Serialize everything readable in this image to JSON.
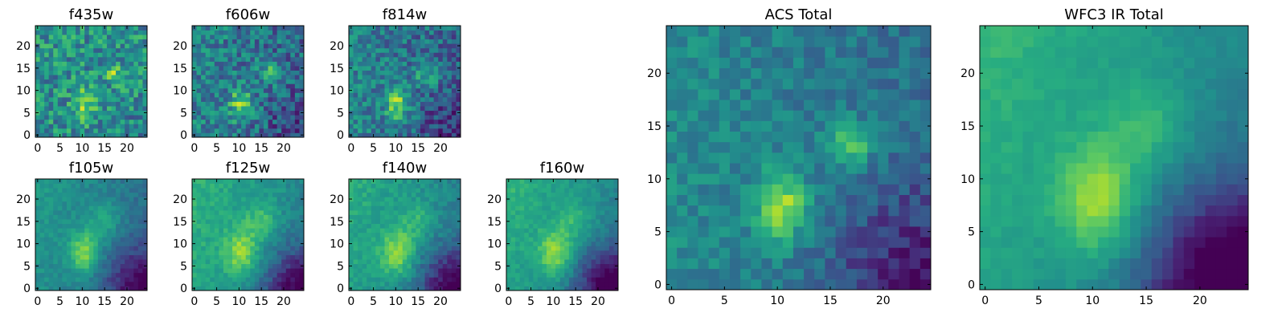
{
  "chart_data": [
    {
      "type": "heatmap",
      "title": "f435w",
      "grid_size": 25,
      "xticks": [
        0,
        5,
        10,
        15,
        20
      ],
      "yticks": [
        0,
        5,
        10,
        15,
        20
      ],
      "xlim": [
        -0.5,
        24.5
      ],
      "ylim": [
        -0.5,
        24.5
      ],
      "colormap": "viridis",
      "blobs": [
        {
          "x": 10.5,
          "y": 7,
          "sx": 1.6,
          "sy": 2.2,
          "amp": 0.35
        },
        {
          "x": 17,
          "y": 14,
          "sx": 1.6,
          "sy": 1.4,
          "amp": 0.28
        }
      ],
      "base": 0.5,
      "noise": 0.22,
      "seed": 11,
      "gradient_x": 0,
      "gradient_y": 0,
      "corner_dark": 0.05
    },
    {
      "type": "heatmap",
      "title": "f606w",
      "grid_size": 25,
      "xticks": [
        0,
        5,
        10,
        15,
        20
      ],
      "yticks": [
        0,
        5,
        10,
        15,
        20
      ],
      "xlim": [
        -0.5,
        24.5
      ],
      "ylim": [
        -0.5,
        24.5
      ],
      "colormap": "viridis",
      "blobs": [
        {
          "x": 10.5,
          "y": 7,
          "sx": 1.8,
          "sy": 2.4,
          "amp": 0.38
        },
        {
          "x": 17,
          "y": 14,
          "sx": 1.8,
          "sy": 1.5,
          "amp": 0.3
        }
      ],
      "base": 0.45,
      "noise": 0.2,
      "seed": 23,
      "gradient_x": -0.1,
      "gradient_y": 0,
      "corner_dark": 0.15
    },
    {
      "type": "heatmap",
      "title": "f814w",
      "grid_size": 25,
      "xticks": [
        0,
        5,
        10,
        15,
        20
      ],
      "yticks": [
        0,
        5,
        10,
        15,
        20
      ],
      "xlim": [
        -0.5,
        24.5
      ],
      "ylim": [
        -0.5,
        24.5
      ],
      "colormap": "viridis",
      "blobs": [
        {
          "x": 10.5,
          "y": 7,
          "sx": 1.8,
          "sy": 2.6,
          "amp": 0.42
        },
        {
          "x": 17,
          "y": 13,
          "sx": 1.8,
          "sy": 1.6,
          "amp": 0.26
        }
      ],
      "base": 0.45,
      "noise": 0.18,
      "seed": 37,
      "gradient_x": -0.12,
      "gradient_y": 0,
      "corner_dark": 0.2
    },
    {
      "type": "heatmap",
      "title": "f105w",
      "grid_size": 25,
      "xticks": [
        0,
        5,
        10,
        15,
        20
      ],
      "yticks": [
        0,
        5,
        10,
        15,
        20
      ],
      "xlim": [
        -0.5,
        24.5
      ],
      "ylim": [
        -0.5,
        24.5
      ],
      "colormap": "viridis",
      "blobs": [
        {
          "x": 10.5,
          "y": 8,
          "sx": 2.4,
          "sy": 3.4,
          "amp": 0.38
        },
        {
          "x": 15,
          "y": 15,
          "sx": 2.6,
          "sy": 3,
          "amp": 0.18
        }
      ],
      "base": 0.5,
      "noise": 0.06,
      "seed": 41,
      "gradient_x": -0.18,
      "gradient_y": 0.05,
      "corner_dark": 0.35
    },
    {
      "type": "heatmap",
      "title": "f125w",
      "grid_size": 25,
      "xticks": [
        0,
        5,
        10,
        15,
        20
      ],
      "yticks": [
        0,
        5,
        10,
        15,
        20
      ],
      "xlim": [
        -0.5,
        24.5
      ],
      "ylim": [
        -0.5,
        24.5
      ],
      "colormap": "viridis",
      "blobs": [
        {
          "x": 10.5,
          "y": 8,
          "sx": 2.6,
          "sy": 3.6,
          "amp": 0.32
        },
        {
          "x": 15,
          "y": 15,
          "sx": 2.6,
          "sy": 3,
          "amp": 0.18
        }
      ],
      "base": 0.6,
      "noise": 0.07,
      "seed": 53,
      "gradient_x": -0.18,
      "gradient_y": 0.05,
      "corner_dark": 0.45
    },
    {
      "type": "heatmap",
      "title": "f140w",
      "grid_size": 25,
      "xticks": [
        0,
        5,
        10,
        15,
        20
      ],
      "yticks": [
        0,
        5,
        10,
        15,
        20
      ],
      "xlim": [
        -0.5,
        24.5
      ],
      "ylim": [
        -0.5,
        24.5
      ],
      "colormap": "viridis",
      "blobs": [
        {
          "x": 10.5,
          "y": 8,
          "sx": 2.6,
          "sy": 3.6,
          "amp": 0.34
        },
        {
          "x": 15,
          "y": 15,
          "sx": 2.6,
          "sy": 3,
          "amp": 0.16
        }
      ],
      "base": 0.58,
      "noise": 0.07,
      "seed": 67,
      "gradient_x": -0.18,
      "gradient_y": 0.05,
      "corner_dark": 0.45
    },
    {
      "type": "heatmap",
      "title": "f160w",
      "grid_size": 25,
      "xticks": [
        0,
        5,
        10,
        15,
        20
      ],
      "yticks": [
        0,
        5,
        10,
        15,
        20
      ],
      "xlim": [
        -0.5,
        24.5
      ],
      "ylim": [
        -0.5,
        24.5
      ],
      "colormap": "viridis",
      "blobs": [
        {
          "x": 10.5,
          "y": 8,
          "sx": 2.6,
          "sy": 3.6,
          "amp": 0.34
        },
        {
          "x": 15,
          "y": 15,
          "sx": 2.6,
          "sy": 3,
          "amp": 0.16
        }
      ],
      "base": 0.58,
      "noise": 0.06,
      "seed": 79,
      "gradient_x": -0.2,
      "gradient_y": 0.08,
      "corner_dark": 0.5
    },
    {
      "type": "heatmap",
      "title": "ACS Total",
      "grid_size": 25,
      "xticks": [
        0,
        5,
        10,
        15,
        20
      ],
      "yticks": [
        0,
        5,
        10,
        15,
        20
      ],
      "xlim": [
        -0.5,
        24.5
      ],
      "ylim": [
        -0.5,
        24.5
      ],
      "colormap": "viridis",
      "blobs": [
        {
          "x": 10.5,
          "y": 7.5,
          "sx": 1.7,
          "sy": 2.4,
          "amp": 0.42
        },
        {
          "x": 17,
          "y": 13.5,
          "sx": 1.6,
          "sy": 1.4,
          "amp": 0.35
        }
      ],
      "base": 0.48,
      "noise": 0.1,
      "seed": 97,
      "gradient_x": -0.12,
      "gradient_y": 0,
      "corner_dark": 0.3
    },
    {
      "type": "heatmap",
      "title": "WFC3 IR Total",
      "grid_size": 25,
      "xticks": [
        0,
        5,
        10,
        15,
        20
      ],
      "yticks": [
        0,
        5,
        10,
        15,
        20
      ],
      "xlim": [
        -0.5,
        24.5
      ],
      "ylim": [
        -0.5,
        24.5
      ],
      "colormap": "viridis",
      "blobs": [
        {
          "x": 10.5,
          "y": 8,
          "sx": 2.6,
          "sy": 3.6,
          "amp": 0.36
        },
        {
          "x": 15,
          "y": 15,
          "sx": 2.6,
          "sy": 3,
          "amp": 0.17
        }
      ],
      "base": 0.58,
      "noise": 0.035,
      "seed": 113,
      "gradient_x": -0.22,
      "gradient_y": 0.1,
      "corner_dark": 0.55
    }
  ],
  "colors": {
    "text": "#000000",
    "frame": "#000000",
    "background": "#ffffff"
  }
}
